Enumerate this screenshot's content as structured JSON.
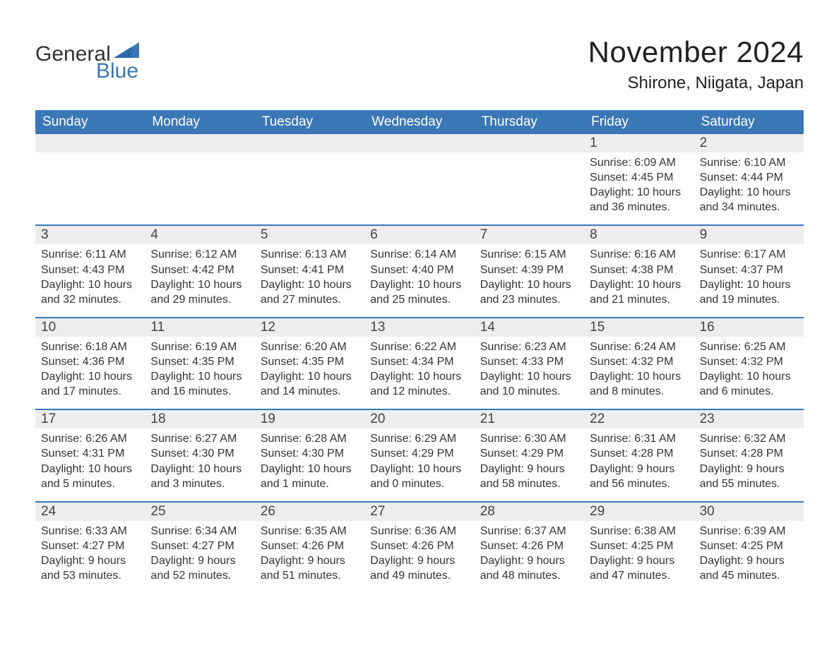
{
  "brand": {
    "word1": "General",
    "word2": "Blue",
    "text_color": "#333333",
    "accent_color": "#3a77b7"
  },
  "title": {
    "month": "November 2024",
    "location": "Shirone, Niigata, Japan",
    "month_fontsize": 42,
    "location_fontsize": 24,
    "color": "#222222"
  },
  "calendar": {
    "type": "table",
    "header_bg": "#3a77b7",
    "header_text_color": "#ffffff",
    "divider_color": "#3a77b7",
    "daynum_bg": "#ededed",
    "body_text_color": "#333333",
    "background_color": "#ffffff",
    "body_fontsize": 16,
    "header_fontsize": 19,
    "columns": [
      "Sunday",
      "Monday",
      "Tuesday",
      "Wednesday",
      "Thursday",
      "Friday",
      "Saturday"
    ],
    "weeks": [
      [
        {
          "blank": true
        },
        {
          "blank": true
        },
        {
          "blank": true
        },
        {
          "blank": true
        },
        {
          "blank": true
        },
        {
          "day": "1",
          "sunrise": "Sunrise: 6:09 AM",
          "sunset": "Sunset: 4:45 PM",
          "daylight": "Daylight: 10 hours and 36 minutes."
        },
        {
          "day": "2",
          "sunrise": "Sunrise: 6:10 AM",
          "sunset": "Sunset: 4:44 PM",
          "daylight": "Daylight: 10 hours and 34 minutes."
        }
      ],
      [
        {
          "day": "3",
          "sunrise": "Sunrise: 6:11 AM",
          "sunset": "Sunset: 4:43 PM",
          "daylight": "Daylight: 10 hours and 32 minutes."
        },
        {
          "day": "4",
          "sunrise": "Sunrise: 6:12 AM",
          "sunset": "Sunset: 4:42 PM",
          "daylight": "Daylight: 10 hours and 29 minutes."
        },
        {
          "day": "5",
          "sunrise": "Sunrise: 6:13 AM",
          "sunset": "Sunset: 4:41 PM",
          "daylight": "Daylight: 10 hours and 27 minutes."
        },
        {
          "day": "6",
          "sunrise": "Sunrise: 6:14 AM",
          "sunset": "Sunset: 4:40 PM",
          "daylight": "Daylight: 10 hours and 25 minutes."
        },
        {
          "day": "7",
          "sunrise": "Sunrise: 6:15 AM",
          "sunset": "Sunset: 4:39 PM",
          "daylight": "Daylight: 10 hours and 23 minutes."
        },
        {
          "day": "8",
          "sunrise": "Sunrise: 6:16 AM",
          "sunset": "Sunset: 4:38 PM",
          "daylight": "Daylight: 10 hours and 21 minutes."
        },
        {
          "day": "9",
          "sunrise": "Sunrise: 6:17 AM",
          "sunset": "Sunset: 4:37 PM",
          "daylight": "Daylight: 10 hours and 19 minutes."
        }
      ],
      [
        {
          "day": "10",
          "sunrise": "Sunrise: 6:18 AM",
          "sunset": "Sunset: 4:36 PM",
          "daylight": "Daylight: 10 hours and 17 minutes."
        },
        {
          "day": "11",
          "sunrise": "Sunrise: 6:19 AM",
          "sunset": "Sunset: 4:35 PM",
          "daylight": "Daylight: 10 hours and 16 minutes."
        },
        {
          "day": "12",
          "sunrise": "Sunrise: 6:20 AM",
          "sunset": "Sunset: 4:35 PM",
          "daylight": "Daylight: 10 hours and 14 minutes."
        },
        {
          "day": "13",
          "sunrise": "Sunrise: 6:22 AM",
          "sunset": "Sunset: 4:34 PM",
          "daylight": "Daylight: 10 hours and 12 minutes."
        },
        {
          "day": "14",
          "sunrise": "Sunrise: 6:23 AM",
          "sunset": "Sunset: 4:33 PM",
          "daylight": "Daylight: 10 hours and 10 minutes."
        },
        {
          "day": "15",
          "sunrise": "Sunrise: 6:24 AM",
          "sunset": "Sunset: 4:32 PM",
          "daylight": "Daylight: 10 hours and 8 minutes."
        },
        {
          "day": "16",
          "sunrise": "Sunrise: 6:25 AM",
          "sunset": "Sunset: 4:32 PM",
          "daylight": "Daylight: 10 hours and 6 minutes."
        }
      ],
      [
        {
          "day": "17",
          "sunrise": "Sunrise: 6:26 AM",
          "sunset": "Sunset: 4:31 PM",
          "daylight": "Daylight: 10 hours and 5 minutes."
        },
        {
          "day": "18",
          "sunrise": "Sunrise: 6:27 AM",
          "sunset": "Sunset: 4:30 PM",
          "daylight": "Daylight: 10 hours and 3 minutes."
        },
        {
          "day": "19",
          "sunrise": "Sunrise: 6:28 AM",
          "sunset": "Sunset: 4:30 PM",
          "daylight": "Daylight: 10 hours and 1 minute."
        },
        {
          "day": "20",
          "sunrise": "Sunrise: 6:29 AM",
          "sunset": "Sunset: 4:29 PM",
          "daylight": "Daylight: 10 hours and 0 minutes."
        },
        {
          "day": "21",
          "sunrise": "Sunrise: 6:30 AM",
          "sunset": "Sunset: 4:29 PM",
          "daylight": "Daylight: 9 hours and 58 minutes."
        },
        {
          "day": "22",
          "sunrise": "Sunrise: 6:31 AM",
          "sunset": "Sunset: 4:28 PM",
          "daylight": "Daylight: 9 hours and 56 minutes."
        },
        {
          "day": "23",
          "sunrise": "Sunrise: 6:32 AM",
          "sunset": "Sunset: 4:28 PM",
          "daylight": "Daylight: 9 hours and 55 minutes."
        }
      ],
      [
        {
          "day": "24",
          "sunrise": "Sunrise: 6:33 AM",
          "sunset": "Sunset: 4:27 PM",
          "daylight": "Daylight: 9 hours and 53 minutes."
        },
        {
          "day": "25",
          "sunrise": "Sunrise: 6:34 AM",
          "sunset": "Sunset: 4:27 PM",
          "daylight": "Daylight: 9 hours and 52 minutes."
        },
        {
          "day": "26",
          "sunrise": "Sunrise: 6:35 AM",
          "sunset": "Sunset: 4:26 PM",
          "daylight": "Daylight: 9 hours and 51 minutes."
        },
        {
          "day": "27",
          "sunrise": "Sunrise: 6:36 AM",
          "sunset": "Sunset: 4:26 PM",
          "daylight": "Daylight: 9 hours and 49 minutes."
        },
        {
          "day": "28",
          "sunrise": "Sunrise: 6:37 AM",
          "sunset": "Sunset: 4:26 PM",
          "daylight": "Daylight: 9 hours and 48 minutes."
        },
        {
          "day": "29",
          "sunrise": "Sunrise: 6:38 AM",
          "sunset": "Sunset: 4:25 PM",
          "daylight": "Daylight: 9 hours and 47 minutes."
        },
        {
          "day": "30",
          "sunrise": "Sunrise: 6:39 AM",
          "sunset": "Sunset: 4:25 PM",
          "daylight": "Daylight: 9 hours and 45 minutes."
        }
      ]
    ]
  }
}
